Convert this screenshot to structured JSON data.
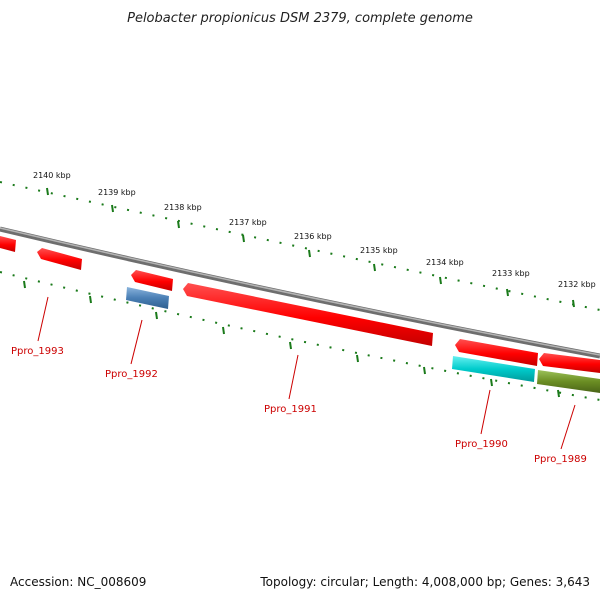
{
  "title": "Pelobacter propionicus DSM 2379, complete genome",
  "accession": "Accession: NC_008609",
  "summary": "Topology: circular; Length: 4,008,000 bp; Genes: 3,643",
  "ruler_ticks": [
    {
      "label": "2140 kbp"
    },
    {
      "label": "2139 kbp"
    },
    {
      "label": "2138 kbp"
    },
    {
      "label": "2137 kbp"
    },
    {
      "label": "2136 kbp"
    },
    {
      "label": "2135 kbp"
    },
    {
      "label": "2134 kbp"
    },
    {
      "label": "2133 kbp"
    },
    {
      "label": "2132 kbp"
    }
  ],
  "genes": [
    {
      "label": "Ppro_1993",
      "color": "#ff0000"
    },
    {
      "label": "Ppro_1992",
      "color": "#4a7fb5"
    },
    {
      "label": "Ppro_1991",
      "color": "#ff0000"
    },
    {
      "label": "Ppro_1990",
      "color": "#00cccc"
    },
    {
      "label": "Ppro_1989",
      "color": "#6b8e23"
    }
  ],
  "colors": {
    "forward_strand": "#ff0000",
    "backbone": "#888888",
    "ruler": "#1a7a1a",
    "label_leader": "#cc0000"
  }
}
